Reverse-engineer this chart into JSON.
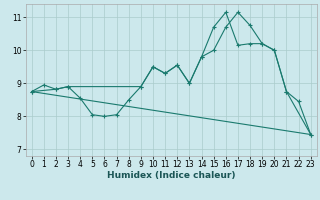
{
  "xlabel": "Humidex (Indice chaleur)",
  "bg_color": "#cce8ec",
  "line_color": "#1a7a6e",
  "grid_color": "#aacccc",
  "line1_x": [
    0,
    1,
    2,
    3,
    4,
    5,
    6,
    7,
    8,
    9,
    10,
    11,
    12,
    13,
    14,
    15,
    16,
    17,
    18,
    19,
    20,
    21,
    22,
    23
  ],
  "line1_y": [
    8.75,
    8.95,
    8.82,
    8.9,
    8.55,
    8.05,
    8.0,
    8.05,
    8.5,
    8.9,
    9.5,
    9.3,
    9.55,
    9.0,
    9.8,
    10.0,
    10.7,
    11.15,
    10.75,
    10.2,
    10.0,
    8.75,
    8.45,
    7.45
  ],
  "line2_x": [
    0,
    2,
    3,
    9,
    10,
    11,
    12,
    13,
    14,
    15,
    16,
    17,
    18,
    19,
    20,
    21,
    23
  ],
  "line2_y": [
    8.75,
    8.82,
    8.9,
    8.9,
    9.5,
    9.3,
    9.55,
    9.0,
    9.8,
    10.7,
    11.15,
    10.15,
    10.2,
    10.2,
    10.0,
    8.75,
    7.45
  ],
  "line3_x": [
    0,
    23
  ],
  "line3_y": [
    8.75,
    7.45
  ],
  "xlim": [
    -0.5,
    23.5
  ],
  "ylim": [
    6.8,
    11.4
  ],
  "xticks": [
    0,
    1,
    2,
    3,
    4,
    5,
    6,
    7,
    8,
    9,
    10,
    11,
    12,
    13,
    14,
    15,
    16,
    17,
    18,
    19,
    20,
    21,
    22,
    23
  ],
  "yticks": [
    7,
    8,
    9,
    10,
    11
  ],
  "tick_fontsize": 5.5,
  "xlabel_fontsize": 6.5
}
